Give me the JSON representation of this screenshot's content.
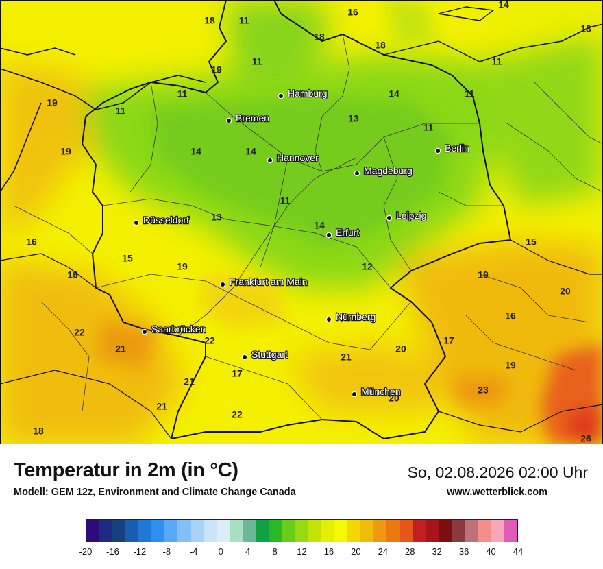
{
  "map": {
    "cities": [
      {
        "name": "Hamburg"
      },
      {
        "name": "Bremen"
      },
      {
        "name": "Berlin"
      },
      {
        "name": "Hannover"
      },
      {
        "name": "Magdeburg"
      },
      {
        "name": "Düsseldorf"
      },
      {
        "name": "Leipzig"
      },
      {
        "name": "Erfurt"
      },
      {
        "name": "Frankfurt am Main"
      },
      {
        "name": "Nürnberg"
      },
      {
        "name": "Saarbrücken"
      },
      {
        "name": "Stuttgart"
      },
      {
        "name": "München"
      }
    ],
    "temperature_labels": [
      "18",
      "11",
      "16",
      "14",
      "18",
      "18",
      "11",
      "18",
      "19",
      "11",
      "14",
      "11",
      "19",
      "11",
      "11",
      "13",
      "11",
      "19",
      "14",
      "14",
      "15",
      "13",
      "11",
      "14",
      "16",
      "15",
      "19",
      "12",
      "16",
      "19",
      "20",
      "22",
      "21",
      "16",
      "22",
      "21",
      "20",
      "17",
      "19",
      "21",
      "17",
      "23",
      "20",
      "21",
      "22",
      "18",
      "26"
    ]
  },
  "info": {
    "title": "Temperatur in 2m (in °C)",
    "model": "Modell: GEM 12z, Environment and Climate Change Canada",
    "datetime": "So, 02.08.2026 02:00 Uhr",
    "website": "www.wetterblick.com"
  },
  "legend": {
    "colors": [
      "#2e0a7a",
      "#1c2a80",
      "#16407e",
      "#1a5cb0",
      "#1f78d6",
      "#2d8ff0",
      "#58a8f7",
      "#84c0f6",
      "#a9d3f6",
      "#c9e4fb",
      "#dcecfb",
      "#a7dfc2",
      "#6ab898",
      "#12a044",
      "#28b828",
      "#68cc18",
      "#98d810",
      "#c4e406",
      "#e4ef04",
      "#f4f800",
      "#f3d800",
      "#f0bc0a",
      "#ee9a10",
      "#ea7a10",
      "#e6561a",
      "#c41e22",
      "#a8141c",
      "#7a0e10",
      "#8a3a3e",
      "#bc7278",
      "#f48e8c",
      "#f6a8b8",
      "#e05cb4"
    ],
    "ticks": [
      "-20",
      "-16",
      "-12",
      "-8",
      "-4",
      "0",
      "4",
      "8",
      "12",
      "16",
      "20",
      "24",
      "28",
      "32",
      "36",
      "40",
      "44"
    ]
  }
}
